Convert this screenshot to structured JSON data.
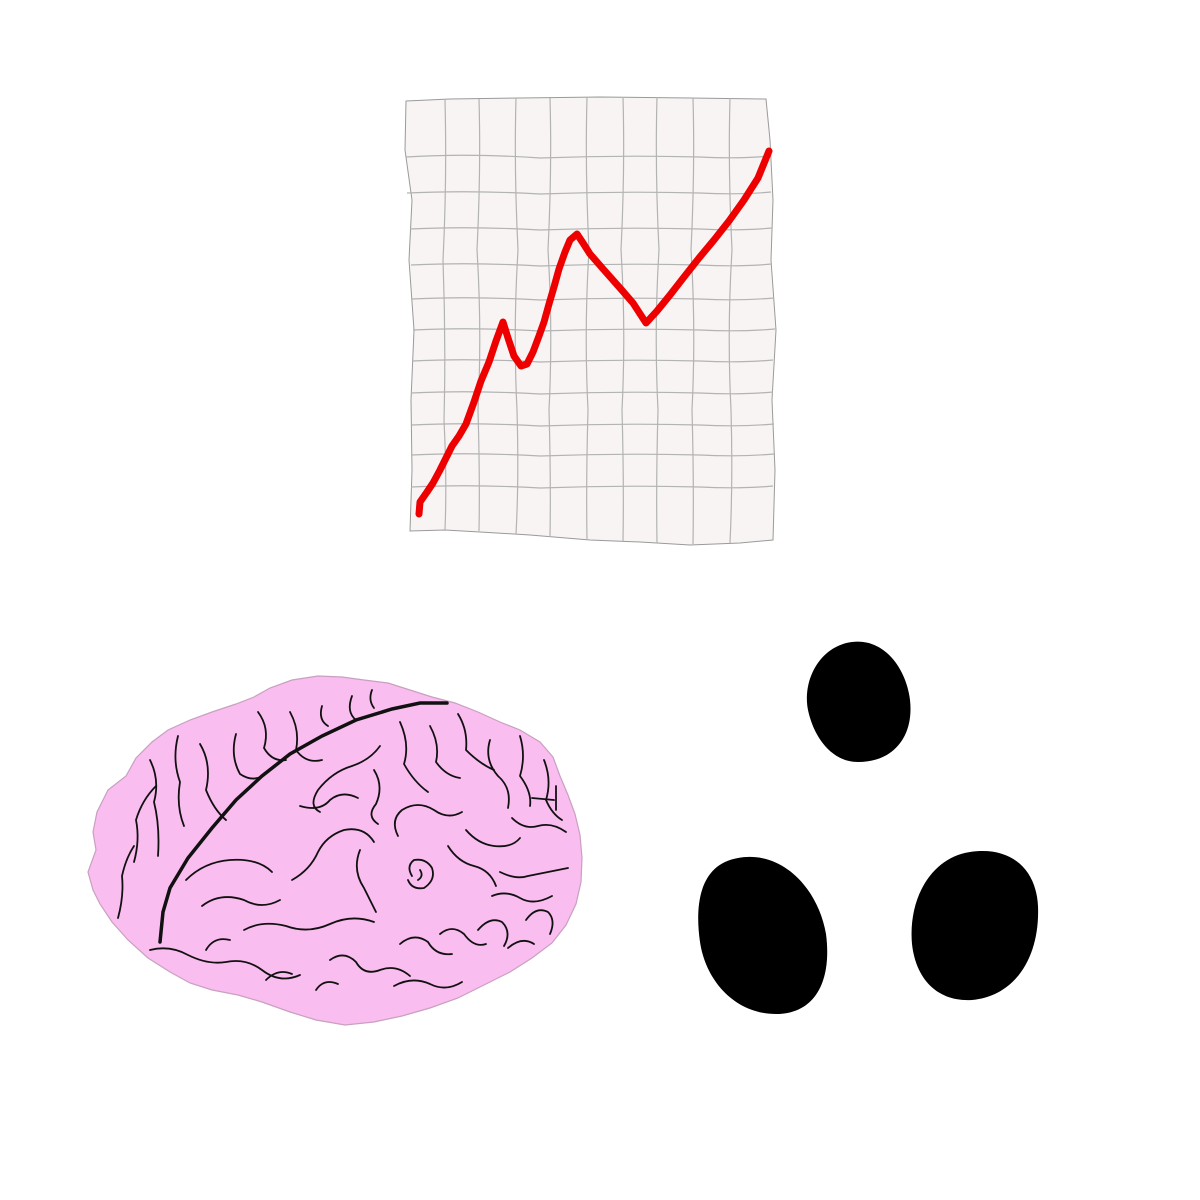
{
  "colors": {
    "background": "#ffffff",
    "paper_fill": "#f7f4f3",
    "paper_outline": "#9a9a9a",
    "grid_line": "#b3b3b3",
    "trend_line": "#ee0000",
    "brain_fill": "#f9bdef",
    "brain_outline": "#c8a0c0",
    "brain_fold": "#111111",
    "dots": "#000000"
  },
  "icons": [
    "trend-chart-paper-icon",
    "brain-icon",
    "three-dots-icon"
  ]
}
